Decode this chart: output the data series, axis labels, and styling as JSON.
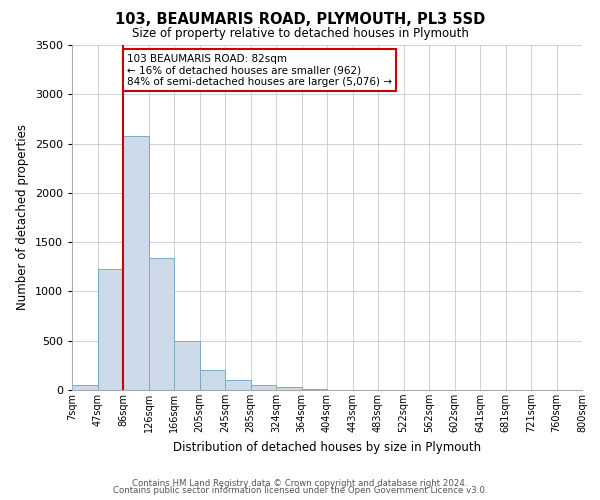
{
  "title": "103, BEAUMARIS ROAD, PLYMOUTH, PL3 5SD",
  "subtitle": "Size of property relative to detached houses in Plymouth",
  "xlabel": "Distribution of detached houses by size in Plymouth",
  "ylabel": "Number of detached properties",
  "footer_lines": [
    "Contains HM Land Registry data © Crown copyright and database right 2024.",
    "Contains public sector information licensed under the Open Government Licence v3.0."
  ],
  "bin_labels": [
    "7sqm",
    "47sqm",
    "86sqm",
    "126sqm",
    "166sqm",
    "205sqm",
    "245sqm",
    "285sqm",
    "324sqm",
    "364sqm",
    "404sqm",
    "443sqm",
    "483sqm",
    "522sqm",
    "562sqm",
    "602sqm",
    "641sqm",
    "681sqm",
    "721sqm",
    "760sqm",
    "800sqm"
  ],
  "bar_heights": [
    50,
    1230,
    2580,
    1340,
    500,
    200,
    100,
    50,
    30,
    10,
    5,
    2,
    1,
    0,
    0,
    0,
    0,
    0,
    0,
    0
  ],
  "bar_color": "#ccdaea",
  "bar_edge_color": "#7aaac8",
  "ylim": [
    0,
    3500
  ],
  "yticks": [
    0,
    500,
    1000,
    1500,
    2000,
    2500,
    3000,
    3500
  ],
  "vline_bin_index": 2,
  "vline_color": "#cc0000",
  "annotation_text": "103 BEAUMARIS ROAD: 82sqm\n← 16% of detached houses are smaller (962)\n84% of semi-detached houses are larger (5,076) →",
  "annotation_box_color": "#ffffff",
  "annotation_box_edge": "#cc0000",
  "background_color": "#ffffff",
  "grid_color": "#c0ccd8"
}
